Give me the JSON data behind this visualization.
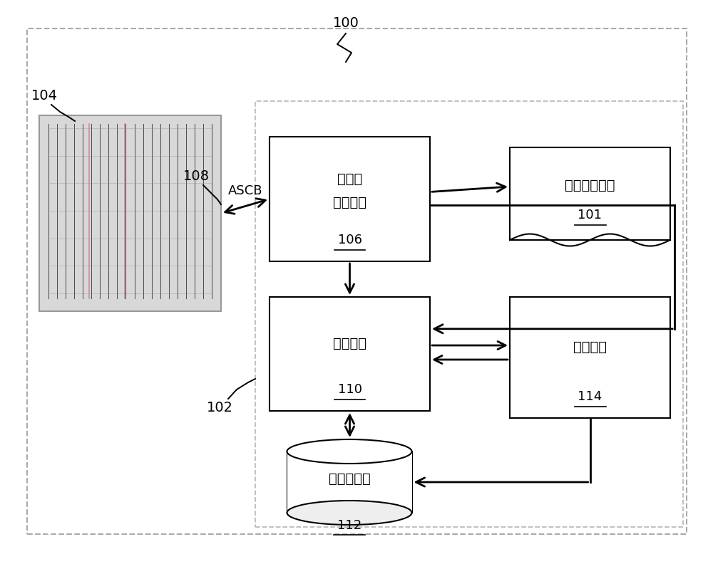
{
  "bg_color": "#ffffff",
  "outer_border_color": "#a0a0a0",
  "inner_border_color": "#b0b0b0",
  "box_edge_color": "#000000",
  "arrow_color": "#000000",
  "text_color": "#000000",
  "label_100": "100",
  "label_102": "102",
  "label_104": "104",
  "label_108": "108",
  "label_101": "101",
  "label_106": "106",
  "label_110": "110",
  "label_112": "112",
  "label_114": "114",
  "text_ascb": "ASCB",
  "text_106_line1": "中央维",
  "text_106_line2": "护计算机",
  "text_101": "电子工作日志",
  "text_110": "远程终端",
  "text_112": "数据存储库",
  "text_114": "推荐系统"
}
